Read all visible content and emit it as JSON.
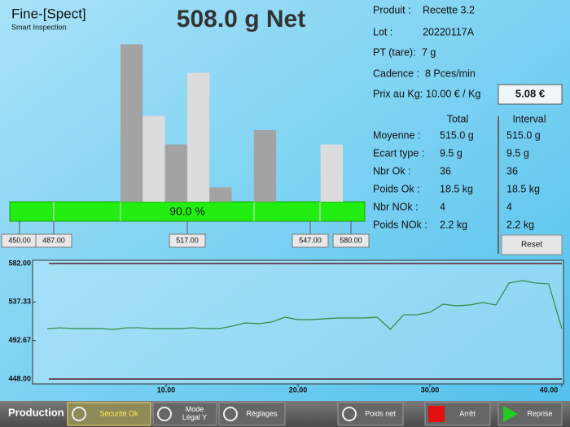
{
  "header": {
    "logo": "Fine-[Spect]",
    "tagline": "Smart Inspection",
    "weight": "508.0 g Net"
  },
  "info": {
    "rows": [
      [
        "Produit :",
        "Recette 3.2"
      ],
      [
        "Lot :",
        "20220117A"
      ],
      [
        "PT (tare):",
        "7 g"
      ],
      [
        "Cadence :",
        "8 Pces/min"
      ],
      [
        "Prix au Kg:",
        "10.00 € / Kg"
      ]
    ],
    "price": "5.08 €"
  },
  "stats": {
    "headers": [
      "Total",
      "Interval"
    ],
    "rows": [
      [
        "Moyenne :",
        "515.0 g",
        "515.0 g"
      ],
      [
        "Ecart type :",
        "9.5 g",
        "9.5 g"
      ],
      [
        "Nbr Ok :",
        "36",
        "36"
      ],
      [
        "Poids Ok :",
        "18.5 kg",
        "18.5 kg"
      ],
      [
        "Nbr NOk :",
        "4",
        "4"
      ],
      [
        "Poids NOk :",
        "2.2 kg",
        "2.2 kg"
      ]
    ],
    "reset": "Reset"
  },
  "histogram": {
    "counts": [
      11,
      6,
      4,
      9,
      1,
      0,
      5,
      0,
      0,
      4
    ],
    "colors": [
      "#a3a3a3",
      "#dcdcdc"
    ],
    "ok_ratio": "90.0 %",
    "limits": [
      "450.00",
      "487.00",
      "517.00",
      "547.00",
      "580.00"
    ]
  },
  "chart_data": {
    "type": "line",
    "x": [
      1,
      2,
      3,
      4,
      5,
      6,
      7,
      8,
      9,
      10,
      11,
      12,
      13,
      14,
      15,
      16,
      17,
      18,
      19,
      20,
      21,
      22,
      23,
      24,
      25,
      26,
      27,
      28,
      29,
      30,
      31,
      32,
      33,
      34,
      35,
      36,
      37,
      38,
      39,
      40
    ],
    "series": [
      {
        "color": "#2e8b3e",
        "values": [
          506.5,
          507.4,
          506.5,
          506.5,
          506.5,
          505.6,
          507.4,
          507.4,
          506.5,
          506.5,
          506.5,
          507.4,
          506.5,
          506.5,
          509.3,
          513.1,
          512.2,
          514.1,
          519.7,
          516.9,
          516.9,
          517.8,
          518.8,
          518.8,
          518.8,
          519.7,
          505.6,
          522.5,
          522.5,
          525.4,
          534.8,
          532.9,
          533.9,
          536.7,
          533.9,
          559.4,
          562.2,
          559.4,
          558.4,
          506.5
        ]
      }
    ],
    "xlim": [
      0,
      40
    ],
    "ylim": [
      448,
      582
    ],
    "xticks": [
      {
        "value": 10,
        "label": "10.00"
      },
      {
        "value": 20,
        "label": "20.00"
      },
      {
        "value": 30,
        "label": "30.00"
      },
      {
        "value": 40,
        "label": "40.00"
      }
    ],
    "yticks": [
      {
        "value": 582,
        "label": "582.00"
      },
      {
        "value": 537.33,
        "label": "537.33"
      },
      {
        "value": 492.67,
        "label": "492.67"
      },
      {
        "value": 448,
        "label": "448.00"
      }
    ]
  },
  "toolbar": {
    "mode": "Production",
    "buttons": [
      "Sécurité Ok",
      "Mode Légal Y",
      "Réglages",
      "Poids net",
      "Arrêt",
      "Reprise"
    ]
  }
}
